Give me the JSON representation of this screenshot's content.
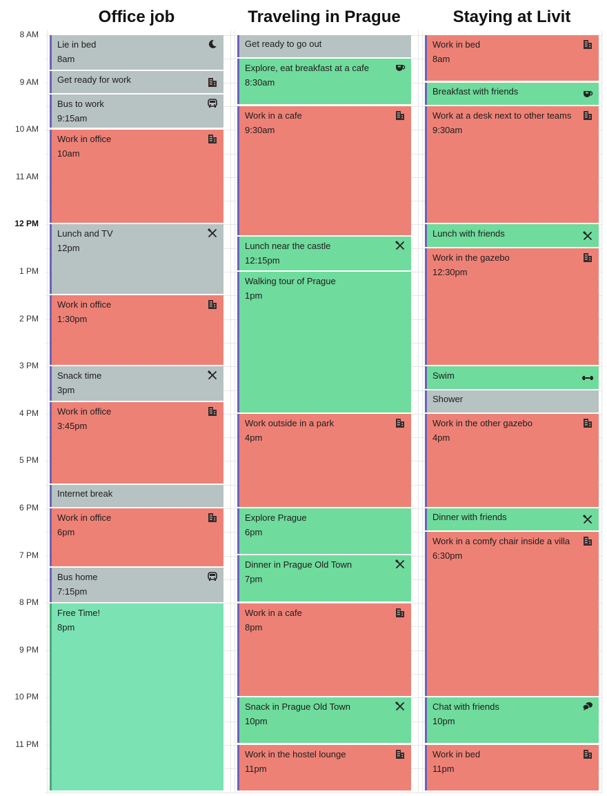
{
  "columns": [
    {
      "title": "Office job"
    },
    {
      "title": "Traveling in Prague"
    },
    {
      "title": "Staying at Livit"
    }
  ],
  "time_labels": [
    "8 AM",
    "9 AM",
    "10 AM",
    "11 AM",
    "12 PM",
    "1 PM",
    "2 PM",
    "3 PM",
    "4 PM",
    "5 PM",
    "6 PM",
    "7 PM",
    "8 PM",
    "9 PM",
    "10 PM",
    "11 PM"
  ],
  "colors": {
    "work": "#ee8176",
    "neutral": "#b7c2c2",
    "leisure": "#6fdb9c",
    "free": "#7be3b3",
    "accent": "#6a63b8"
  },
  "events": {
    "office": [
      {
        "title": "Lie in bed",
        "time": "8am",
        "icon": "moon-icon"
      },
      {
        "title": "Get ready for work",
        "time": "",
        "icon": "building-icon"
      },
      {
        "title": "Bus to work",
        "time": "9:15am",
        "icon": "bus-icon"
      },
      {
        "title": "Work in office",
        "time": "10am",
        "icon": "building-icon"
      },
      {
        "title": "Lunch and TV",
        "time": "12pm",
        "icon": "utensils-icon"
      },
      {
        "title": "Work in office",
        "time": "1:30pm",
        "icon": "building-icon"
      },
      {
        "title": "Snack time",
        "time": "3pm",
        "icon": "utensils-icon"
      },
      {
        "title": "Work in office",
        "time": "3:45pm",
        "icon": "building-icon"
      },
      {
        "title": "Internet break",
        "time": "",
        "icon": ""
      },
      {
        "title": "Work in office",
        "time": "6pm",
        "icon": "building-icon"
      },
      {
        "title": "Bus home",
        "time": "7:15pm",
        "icon": "bus-icon"
      },
      {
        "title": "Free Time!",
        "time": "8pm",
        "icon": ""
      }
    ],
    "prague": [
      {
        "title": "Get ready to go out",
        "time": "",
        "icon": ""
      },
      {
        "title": "Explore, eat breakfast at a cafe",
        "time": "8:30am",
        "icon": "coffee-icon"
      },
      {
        "title": "Work in a cafe",
        "time": "9:30am",
        "icon": "building-icon"
      },
      {
        "title": "Lunch near the castle",
        "time": "12:15pm",
        "icon": "utensils-icon"
      },
      {
        "title": "Walking tour of Prague",
        "time": "1pm",
        "icon": ""
      },
      {
        "title": "Work outside in a park",
        "time": "4pm",
        "icon": "building-icon"
      },
      {
        "title": "Explore Prague",
        "time": "6pm",
        "icon": ""
      },
      {
        "title": "Dinner in Prague Old Town",
        "time": "7pm",
        "icon": "utensils-icon"
      },
      {
        "title": "Work in a cafe",
        "time": "8pm",
        "icon": "building-icon"
      },
      {
        "title": "Snack in Prague Old Town",
        "time": "10pm",
        "icon": "utensils-icon"
      },
      {
        "title": "Work in the hostel lounge",
        "time": "11pm",
        "icon": "building-icon"
      }
    ],
    "livit": [
      {
        "title": "Work in bed",
        "time": "8am",
        "icon": "building-icon"
      },
      {
        "title": "Breakfast with friends",
        "time": "",
        "icon": "coffee-icon"
      },
      {
        "title": "Work at a desk next to other teams",
        "time": "9:30am",
        "icon": "building-icon"
      },
      {
        "title": "Lunch with friends",
        "time": "",
        "icon": "utensils-icon"
      },
      {
        "title": "Work in the gazebo",
        "time": "12:30pm",
        "icon": "building-icon"
      },
      {
        "title": "Swim",
        "time": "",
        "icon": "dumbbell-icon"
      },
      {
        "title": "Shower",
        "time": "",
        "icon": ""
      },
      {
        "title": "Work in the other gazebo",
        "time": "4pm",
        "icon": "building-icon"
      },
      {
        "title": "Dinner with friends",
        "time": "",
        "icon": "utensils-icon"
      },
      {
        "title": "Work in a comfy chair inside a villa",
        "time": "6:30pm",
        "icon": "building-icon"
      },
      {
        "title": "Chat with friends",
        "time": "10pm",
        "icon": "chat-icon"
      },
      {
        "title": "Work in bed",
        "time": "11pm",
        "icon": "building-icon"
      }
    ]
  }
}
